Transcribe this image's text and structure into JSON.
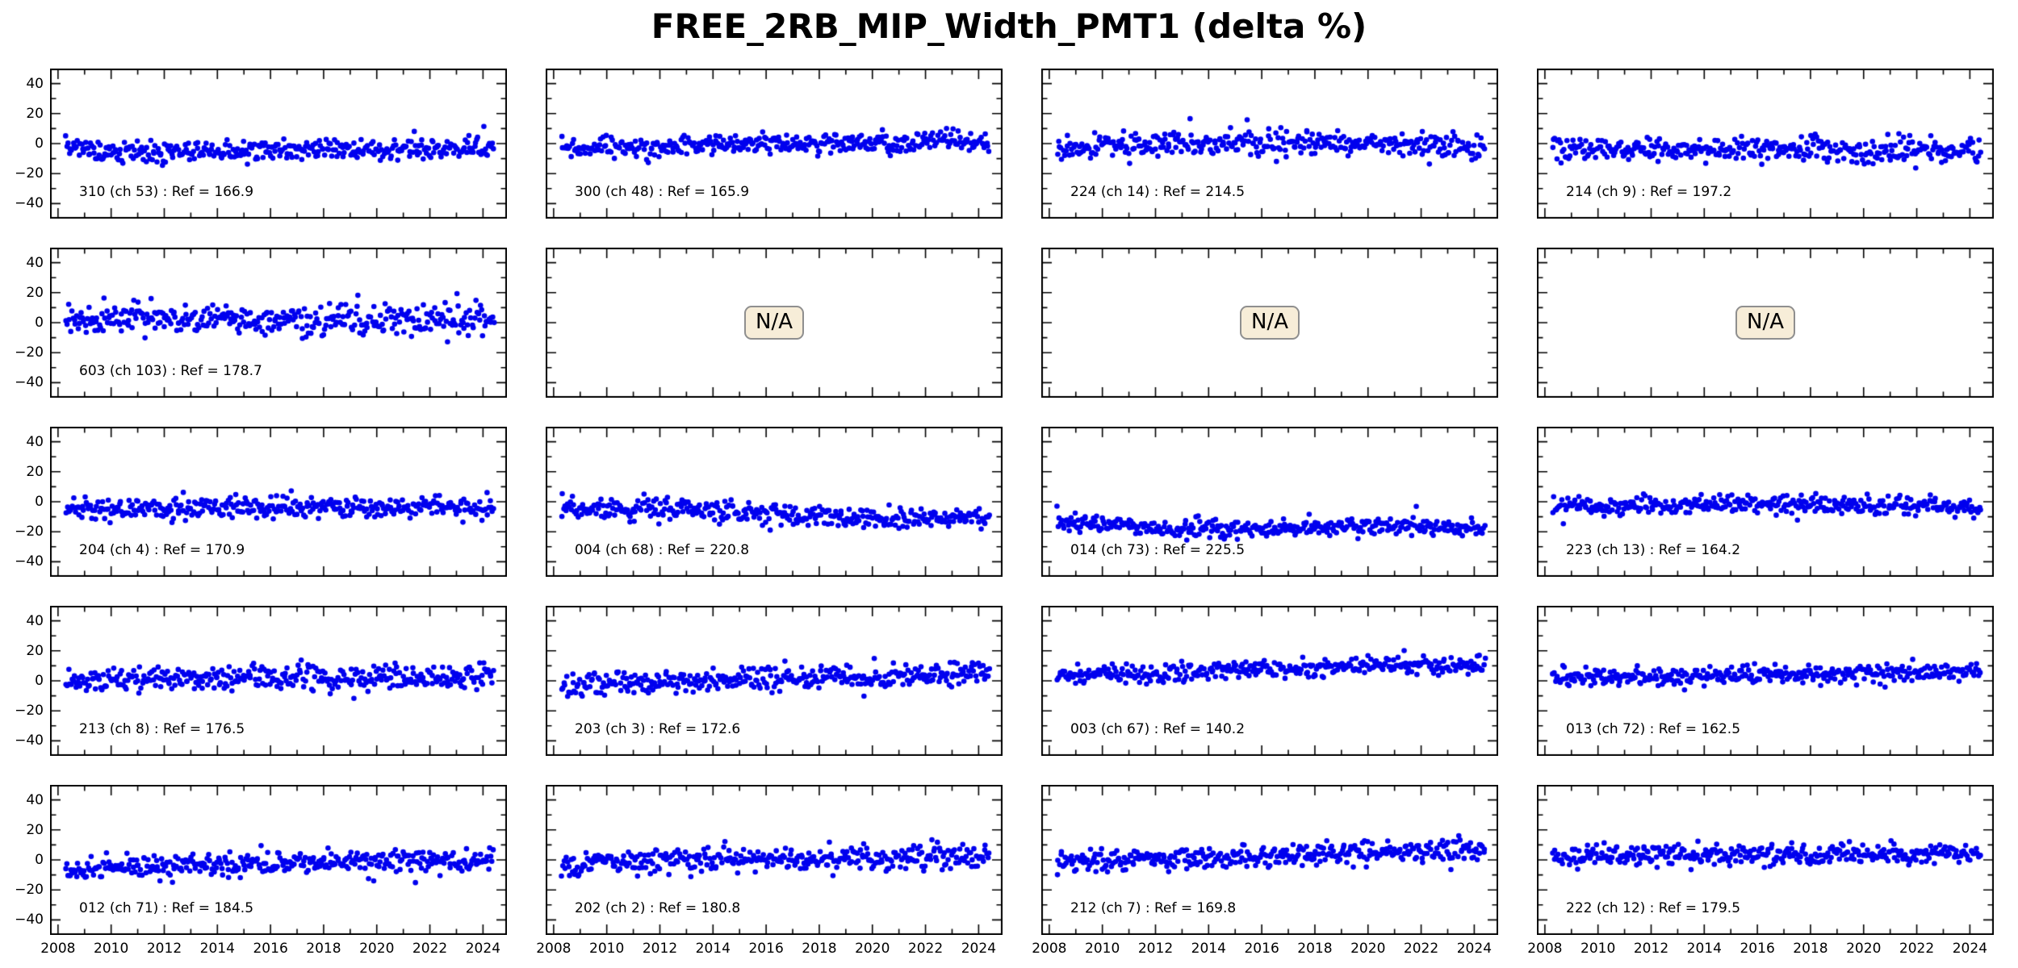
{
  "title": "FREE_2RB_MIP_Width_PMT1 (delta %)",
  "colors": {
    "dot": "#0000ee",
    "axis": "#000000",
    "na_bg": "#f7edd8",
    "na_border": "#8f8f8f"
  },
  "chart_data": {
    "type": "scatter",
    "title": "FREE_2RB_MIP_Width_PMT1 (delta %)",
    "grid": "off",
    "legend": "none",
    "grid_shape": {
      "rows": 5,
      "cols": 4
    },
    "na_label": "N/A",
    "x_axis": {
      "lim": [
        2007.7,
        2024.9
      ],
      "major_ticks": [
        2008,
        2010,
        2012,
        2014,
        2016,
        2018,
        2020,
        2022,
        2024
      ],
      "tick_labels": [
        "2008",
        "2010",
        "2012",
        "2014",
        "2016",
        "2018",
        "2020",
        "2022",
        "2024"
      ],
      "minor_step": 1,
      "labels_only_on_bottom_row": true
    },
    "y_axis": {
      "lim": [
        -50,
        50
      ],
      "major_ticks": [
        40,
        20,
        0,
        -20,
        -40
      ],
      "tick_labels": [
        "40",
        "20",
        "0",
        "−20",
        "−40"
      ],
      "minor_step": 10,
      "labels_only_on_left_column": true
    },
    "panels": [
      {
        "label": "310 (ch 53) : Ref = 166.9",
        "na": false,
        "seed": 1017,
        "n": 360,
        "sigma": 3.5,
        "x_start": 2008.3,
        "x_end": 2024.4,
        "trend_x": [
          2008.3,
          2009.5,
          2014,
          2020,
          2024.4
        ],
        "trend_y": [
          -1,
          -6,
          -5,
          -4,
          -3
        ],
        "outlier_rate": 0.01,
        "outlier_amp": 8
      },
      {
        "label": "300 (ch 48) : Ref = 165.9",
        "na": false,
        "seed": 2017,
        "n": 360,
        "sigma": 3.2,
        "x_start": 2008.3,
        "x_end": 2024.4,
        "trend_x": [
          2008.3,
          2012,
          2018,
          2024.4
        ],
        "trend_y": [
          -3,
          -2,
          0,
          2
        ],
        "outlier_rate": 0.01,
        "outlier_amp": 8
      },
      {
        "label": "224 (ch 14) : Ref = 214.5",
        "na": false,
        "seed": 3017,
        "n": 360,
        "sigma": 4.2,
        "x_start": 2008.3,
        "x_end": 2024.4,
        "trend_x": [
          2008.3,
          2010,
          2016,
          2020,
          2024.4
        ],
        "trend_y": [
          -4,
          -1,
          0,
          0,
          -2
        ],
        "outlier_rate": 0.01,
        "outlier_amp": 8
      },
      {
        "label": "214 (ch 9) : Ref = 197.2",
        "na": false,
        "seed": 4017,
        "n": 360,
        "sigma": 4.0,
        "x_start": 2008.3,
        "x_end": 2024.4,
        "trend_x": [
          2008.3,
          2016,
          2024.4
        ],
        "trend_y": [
          -4,
          -4,
          -5
        ],
        "outlier_rate": 0.012,
        "outlier_amp": 9
      },
      {
        "label": "603 (ch 103) : Ref = 178.7",
        "na": false,
        "seed": 5017,
        "n": 360,
        "sigma": 5.2,
        "x_start": 2008.3,
        "x_end": 2024.4,
        "trend_x": [
          2008.3,
          2012,
          2016,
          2020,
          2024.4
        ],
        "trend_y": [
          2,
          3,
          1,
          2,
          2
        ],
        "outlier_rate": 0.025,
        "outlier_amp": 14
      },
      {
        "label": null,
        "na": true
      },
      {
        "label": null,
        "na": true
      },
      {
        "label": null,
        "na": true
      },
      {
        "label": "204 (ch 4) : Ref = 170.9",
        "na": false,
        "seed": 9017,
        "n": 360,
        "sigma": 3.5,
        "x_start": 2008.3,
        "x_end": 2024.4,
        "trend_x": [
          2008.3,
          2012,
          2016,
          2020,
          2024.4
        ],
        "trend_y": [
          -6,
          -5,
          -3,
          -4,
          -3
        ],
        "outlier_rate": 0.01,
        "outlier_amp": 8
      },
      {
        "label": "004 (ch 68) : Ref = 220.8",
        "na": false,
        "seed": 10017,
        "n": 360,
        "sigma": 3.6,
        "x_start": 2008.3,
        "x_end": 2024.4,
        "trend_x": [
          2008.3,
          2012,
          2016,
          2020,
          2024.4
        ],
        "trend_y": [
          -3,
          -5,
          -8,
          -11,
          -12
        ],
        "outlier_rate": 0.01,
        "outlier_amp": -7
      },
      {
        "label": "014 (ch 73) : Ref = 225.5",
        "na": false,
        "seed": 11017,
        "n": 360,
        "sigma": 3.0,
        "x_start": 2008.3,
        "x_end": 2024.4,
        "trend_x": [
          2008.3,
          2010,
          2013,
          2018,
          2021,
          2024.4
        ],
        "trend_y": [
          -12,
          -16,
          -18,
          -18,
          -16,
          -18
        ],
        "outlier_rate": 0.012,
        "outlier_amp": 7
      },
      {
        "label": "223 (ch 13) : Ref = 164.2",
        "na": false,
        "seed": 12017,
        "n": 360,
        "sigma": 3.0,
        "x_start": 2008.3,
        "x_end": 2024.4,
        "trend_x": [
          2008.3,
          2016,
          2024.4
        ],
        "trend_y": [
          -3,
          -2,
          -3
        ],
        "outlier_rate": 0.012,
        "outlier_amp": 8
      },
      {
        "label": "213 (ch 8) : Ref = 176.5",
        "na": false,
        "seed": 13017,
        "n": 360,
        "sigma": 4.0,
        "x_start": 2008.3,
        "x_end": 2024.4,
        "trend_x": [
          2008.3,
          2012,
          2016,
          2020,
          2024.4
        ],
        "trend_y": [
          0,
          1,
          3,
          2,
          3
        ],
        "outlier_rate": 0.01,
        "outlier_amp": 9
      },
      {
        "label": "203 (ch 3) : Ref = 172.6",
        "na": false,
        "seed": 14017,
        "n": 360,
        "sigma": 4.0,
        "x_start": 2008.3,
        "x_end": 2024.4,
        "trend_x": [
          2008.3,
          2012,
          2016,
          2020,
          2024.4
        ],
        "trend_y": [
          -3,
          -1,
          1,
          3,
          4
        ],
        "outlier_rate": 0.01,
        "outlier_amp": 8
      },
      {
        "label": "003 (ch 67) : Ref = 140.2",
        "na": false,
        "seed": 15017,
        "n": 360,
        "sigma": 3.0,
        "x_start": 2008.3,
        "x_end": 2024.4,
        "trend_x": [
          2008.3,
          2012,
          2016,
          2020,
          2024.4
        ],
        "trend_y": [
          4,
          5,
          8,
          10,
          11
        ],
        "outlier_rate": 0.008,
        "outlier_amp": 7
      },
      {
        "label": "013 (ch 72) : Ref = 162.5",
        "na": false,
        "seed": 16017,
        "n": 360,
        "sigma": 3.0,
        "x_start": 2008.3,
        "x_end": 2024.4,
        "trend_x": [
          2008.3,
          2012,
          2016,
          2020,
          2024.4
        ],
        "trend_y": [
          2,
          3,
          4,
          5,
          6
        ],
        "outlier_rate": 0.008,
        "outlier_amp": 7
      },
      {
        "label": "012 (ch 71) : Ref = 184.5",
        "na": false,
        "seed": 17017,
        "n": 360,
        "sigma": 3.8,
        "x_start": 2008.3,
        "x_end": 2024.4,
        "trend_x": [
          2008.3,
          2012,
          2016,
          2020,
          2024.4
        ],
        "trend_y": [
          -6,
          -4,
          -2,
          0,
          1
        ],
        "outlier_rate": 0.015,
        "outlier_amp": -9
      },
      {
        "label": "202 (ch 2) : Ref = 180.8",
        "na": false,
        "seed": 18017,
        "n": 360,
        "sigma": 4.0,
        "x_start": 2008.3,
        "x_end": 2024.4,
        "trend_x": [
          2008.3,
          2012,
          2016,
          2020,
          2024.4
        ],
        "trend_y": [
          -2,
          0,
          1,
          1,
          2
        ],
        "outlier_rate": 0.012,
        "outlier_amp": -8
      },
      {
        "label": "212 (ch 7) : Ref = 169.8",
        "na": false,
        "seed": 19017,
        "n": 360,
        "sigma": 3.8,
        "x_start": 2008.3,
        "x_end": 2024.4,
        "trend_x": [
          2008.3,
          2012,
          2016,
          2020,
          2024.4
        ],
        "trend_y": [
          -2,
          0,
          2,
          5,
          7
        ],
        "outlier_rate": 0.01,
        "outlier_amp": 8
      },
      {
        "label": "222 (ch 12) : Ref = 179.5",
        "na": false,
        "seed": 20017,
        "n": 360,
        "sigma": 3.4,
        "x_start": 2008.3,
        "x_end": 2024.4,
        "trend_x": [
          2008.3,
          2012,
          2016,
          2020,
          2024.4
        ],
        "trend_y": [
          2,
          3,
          3,
          4,
          4
        ],
        "outlier_rate": 0.01,
        "outlier_amp": 7
      }
    ]
  }
}
